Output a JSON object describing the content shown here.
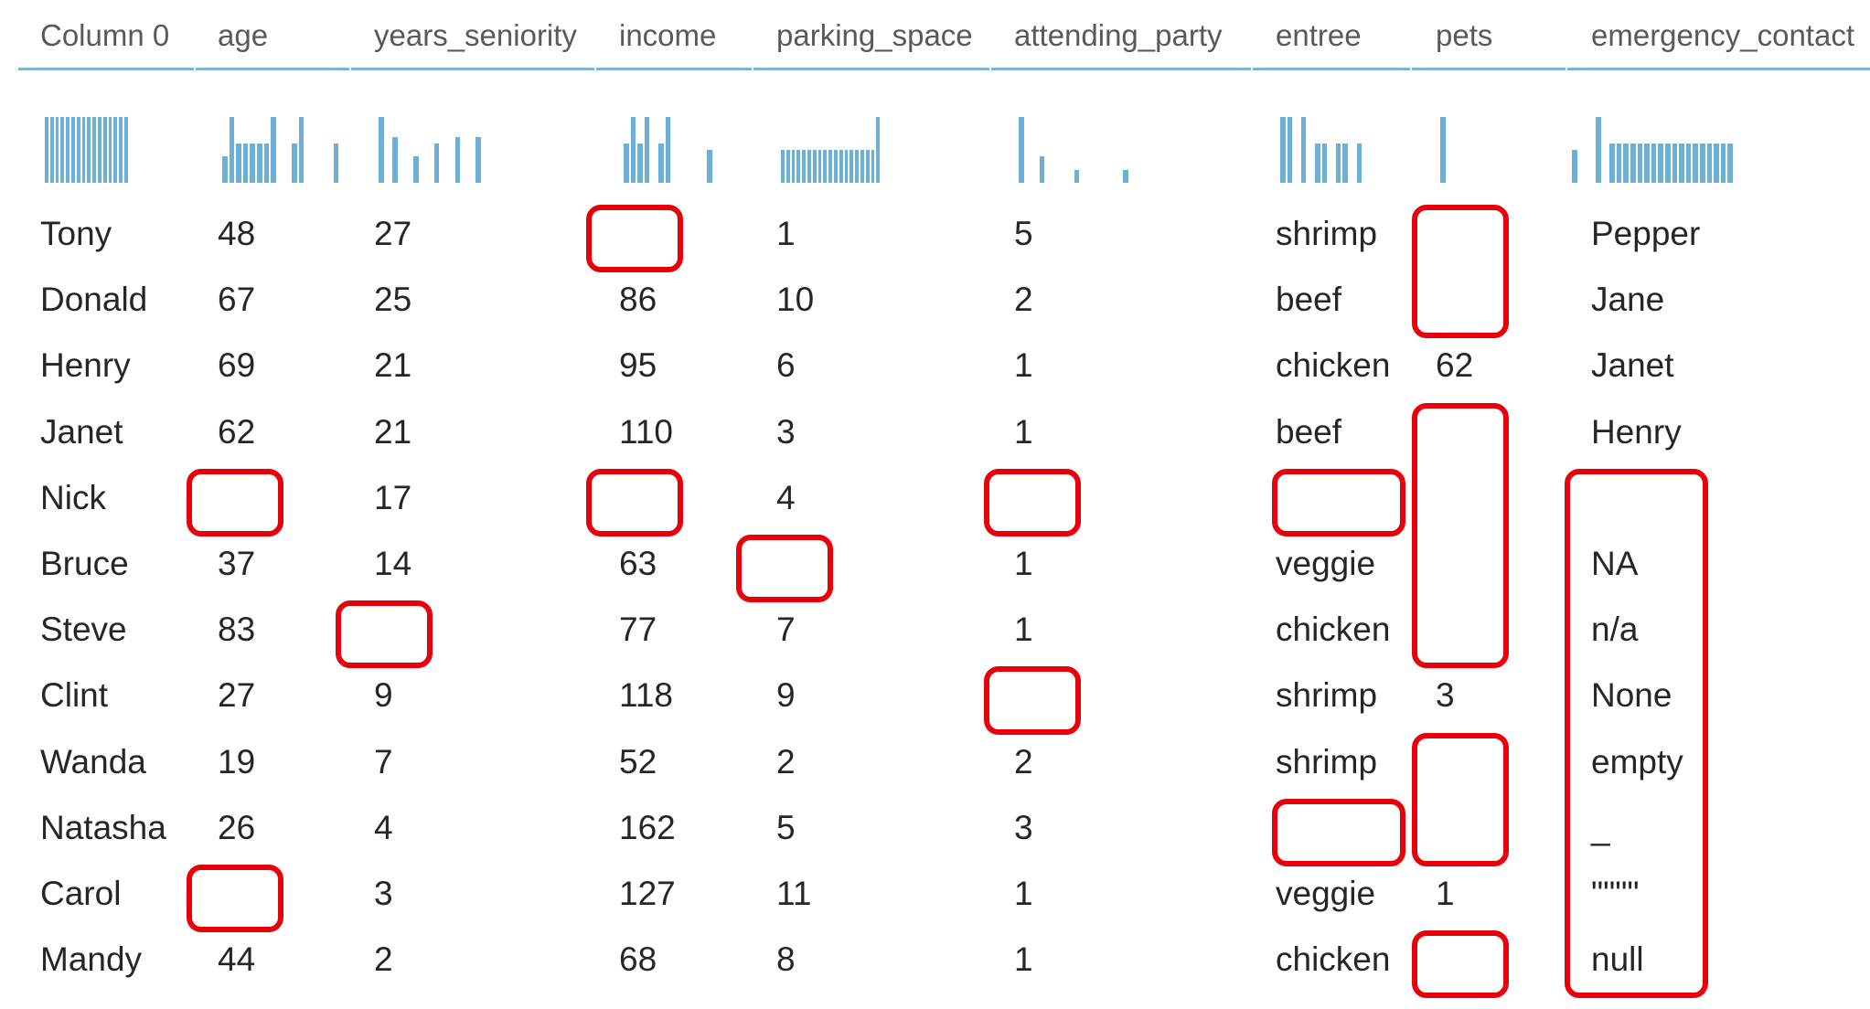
{
  "columns": [
    {
      "key": "name",
      "label": "Column 0",
      "hist": [
        10,
        10,
        10,
        10,
        10,
        10,
        10,
        10,
        10,
        10,
        10,
        10,
        10,
        10,
        10,
        10
      ]
    },
    {
      "key": "age",
      "label": "age",
      "hist": [
        4,
        10,
        6,
        6,
        6,
        6,
        6,
        10,
        0,
        0,
        6,
        10,
        0,
        0,
        0,
        0,
        6
      ]
    },
    {
      "key": "years_seniority",
      "label": "years_seniority",
      "hist": [
        10,
        0,
        7,
        0,
        0,
        4,
        0,
        0,
        6,
        0,
        0,
        7,
        0,
        0,
        7
      ]
    },
    {
      "key": "income",
      "label": "income",
      "hist": [
        6,
        10,
        6,
        10,
        0,
        6,
        10,
        0,
        0,
        0,
        0,
        0,
        5
      ]
    },
    {
      "key": "parking_space",
      "label": "parking_space",
      "hist": [
        5,
        5,
        5,
        5,
        5,
        5,
        5,
        5,
        5,
        5,
        5,
        5,
        5,
        5,
        5,
        5,
        5,
        5,
        10
      ]
    },
    {
      "key": "attending_party",
      "label": "attending_party",
      "hist": [
        10,
        0,
        0,
        4,
        0,
        0,
        0,
        0,
        2,
        0,
        0,
        0,
        0,
        0,
        0,
        2
      ]
    },
    {
      "key": "entree",
      "label": "entree",
      "hist": [
        10,
        10,
        0,
        10,
        0,
        6,
        6,
        0,
        6,
        6,
        0,
        6
      ]
    },
    {
      "key": "pets",
      "label": "pets",
      "hist": [
        10,
        0,
        0,
        0,
        0,
        0,
        0,
        0,
        0,
        0,
        0,
        0,
        0,
        0,
        0,
        0,
        0,
        0,
        0,
        5
      ]
    },
    {
      "key": "emergency_contact",
      "label": "emergency_contact",
      "hist": [
        10,
        0,
        6,
        6,
        6,
        6,
        6,
        6,
        6,
        6,
        6,
        6,
        6,
        6,
        6,
        6,
        6,
        6,
        6,
        6
      ]
    }
  ],
  "rows": [
    {
      "name": "Tony",
      "age": "48",
      "years_seniority": "27",
      "income": "",
      "parking_space": "1",
      "attending_party": "5",
      "entree": "shrimp",
      "pets": "",
      "emergency_contact": "Pepper"
    },
    {
      "name": "Donald",
      "age": "67",
      "years_seniority": "25",
      "income": "86",
      "parking_space": "10",
      "attending_party": "2",
      "entree": "beef",
      "pets": "",
      "emergency_contact": "Jane"
    },
    {
      "name": "Henry",
      "age": "69",
      "years_seniority": "21",
      "income": "95",
      "parking_space": "6",
      "attending_party": "1",
      "entree": "chicken",
      "pets": "62",
      "emergency_contact": "Janet"
    },
    {
      "name": "Janet",
      "age": "62",
      "years_seniority": "21",
      "income": "110",
      "parking_space": "3",
      "attending_party": "1",
      "entree": "beef",
      "pets": "",
      "emergency_contact": "Henry"
    },
    {
      "name": "Nick",
      "age": "",
      "years_seniority": "17",
      "income": "",
      "parking_space": "4",
      "attending_party": "",
      "entree": "",
      "pets": "",
      "emergency_contact": ""
    },
    {
      "name": "Bruce",
      "age": "37",
      "years_seniority": "14",
      "income": "63",
      "parking_space": "",
      "attending_party": "1",
      "entree": "veggie",
      "pets": "",
      "emergency_contact": "NA"
    },
    {
      "name": "Steve",
      "age": "83",
      "years_seniority": "",
      "income": "77",
      "parking_space": "7",
      "attending_party": "1",
      "entree": "chicken",
      "pets": "",
      "emergency_contact": "n/a"
    },
    {
      "name": "Clint",
      "age": "27",
      "years_seniority": "9",
      "income": "118",
      "parking_space": "9",
      "attending_party": "",
      "entree": "shrimp",
      "pets": "3",
      "emergency_contact": "None"
    },
    {
      "name": "Wanda",
      "age": "19",
      "years_seniority": "7",
      "income": "52",
      "parking_space": "2",
      "attending_party": "2",
      "entree": "shrimp",
      "pets": "",
      "emergency_contact": "empty"
    },
    {
      "name": "Natasha",
      "age": "26",
      "years_seniority": "4",
      "income": "162",
      "parking_space": "5",
      "attending_party": "3",
      "entree": "",
      "pets": "",
      "emergency_contact": "_"
    },
    {
      "name": "Carol",
      "age": "",
      "years_seniority": "3",
      "income": "127",
      "parking_space": "11",
      "attending_party": "1",
      "entree": "veggie",
      "pets": "1",
      "emergency_contact": "\"\"\"\""
    },
    {
      "name": "Mandy",
      "age": "44",
      "years_seniority": "2",
      "income": "68",
      "parking_space": "8",
      "attending_party": "1",
      "entree": "chicken",
      "pets": "",
      "emergency_contact": "null"
    }
  ],
  "missing_highlights": [
    {
      "column": "income",
      "from_row": 0,
      "to_row": 0
    },
    {
      "column": "pets",
      "from_row": 0,
      "to_row": 1
    },
    {
      "column": "pets",
      "from_row": 3,
      "to_row": 6
    },
    {
      "column": "age",
      "from_row": 4,
      "to_row": 4
    },
    {
      "column": "income",
      "from_row": 4,
      "to_row": 4
    },
    {
      "column": "attending_party",
      "from_row": 4,
      "to_row": 4
    },
    {
      "column": "entree",
      "from_row": 4,
      "to_row": 4
    },
    {
      "column": "emergency_contact",
      "from_row": 4,
      "to_row": 11
    },
    {
      "column": "parking_space",
      "from_row": 5,
      "to_row": 5
    },
    {
      "column": "years_seniority",
      "from_row": 6,
      "to_row": 6
    },
    {
      "column": "attending_party",
      "from_row": 7,
      "to_row": 7
    },
    {
      "column": "pets",
      "from_row": 8,
      "to_row": 9
    },
    {
      "column": "entree",
      "from_row": 9,
      "to_row": 9
    },
    {
      "column": "age",
      "from_row": 10,
      "to_row": 10
    },
    {
      "column": "pets",
      "from_row": 11,
      "to_row": 11
    }
  ],
  "colors": {
    "histogram": "#6ab0d8",
    "header_rule": "#7fb3d5",
    "highlight": "#e8000b"
  }
}
